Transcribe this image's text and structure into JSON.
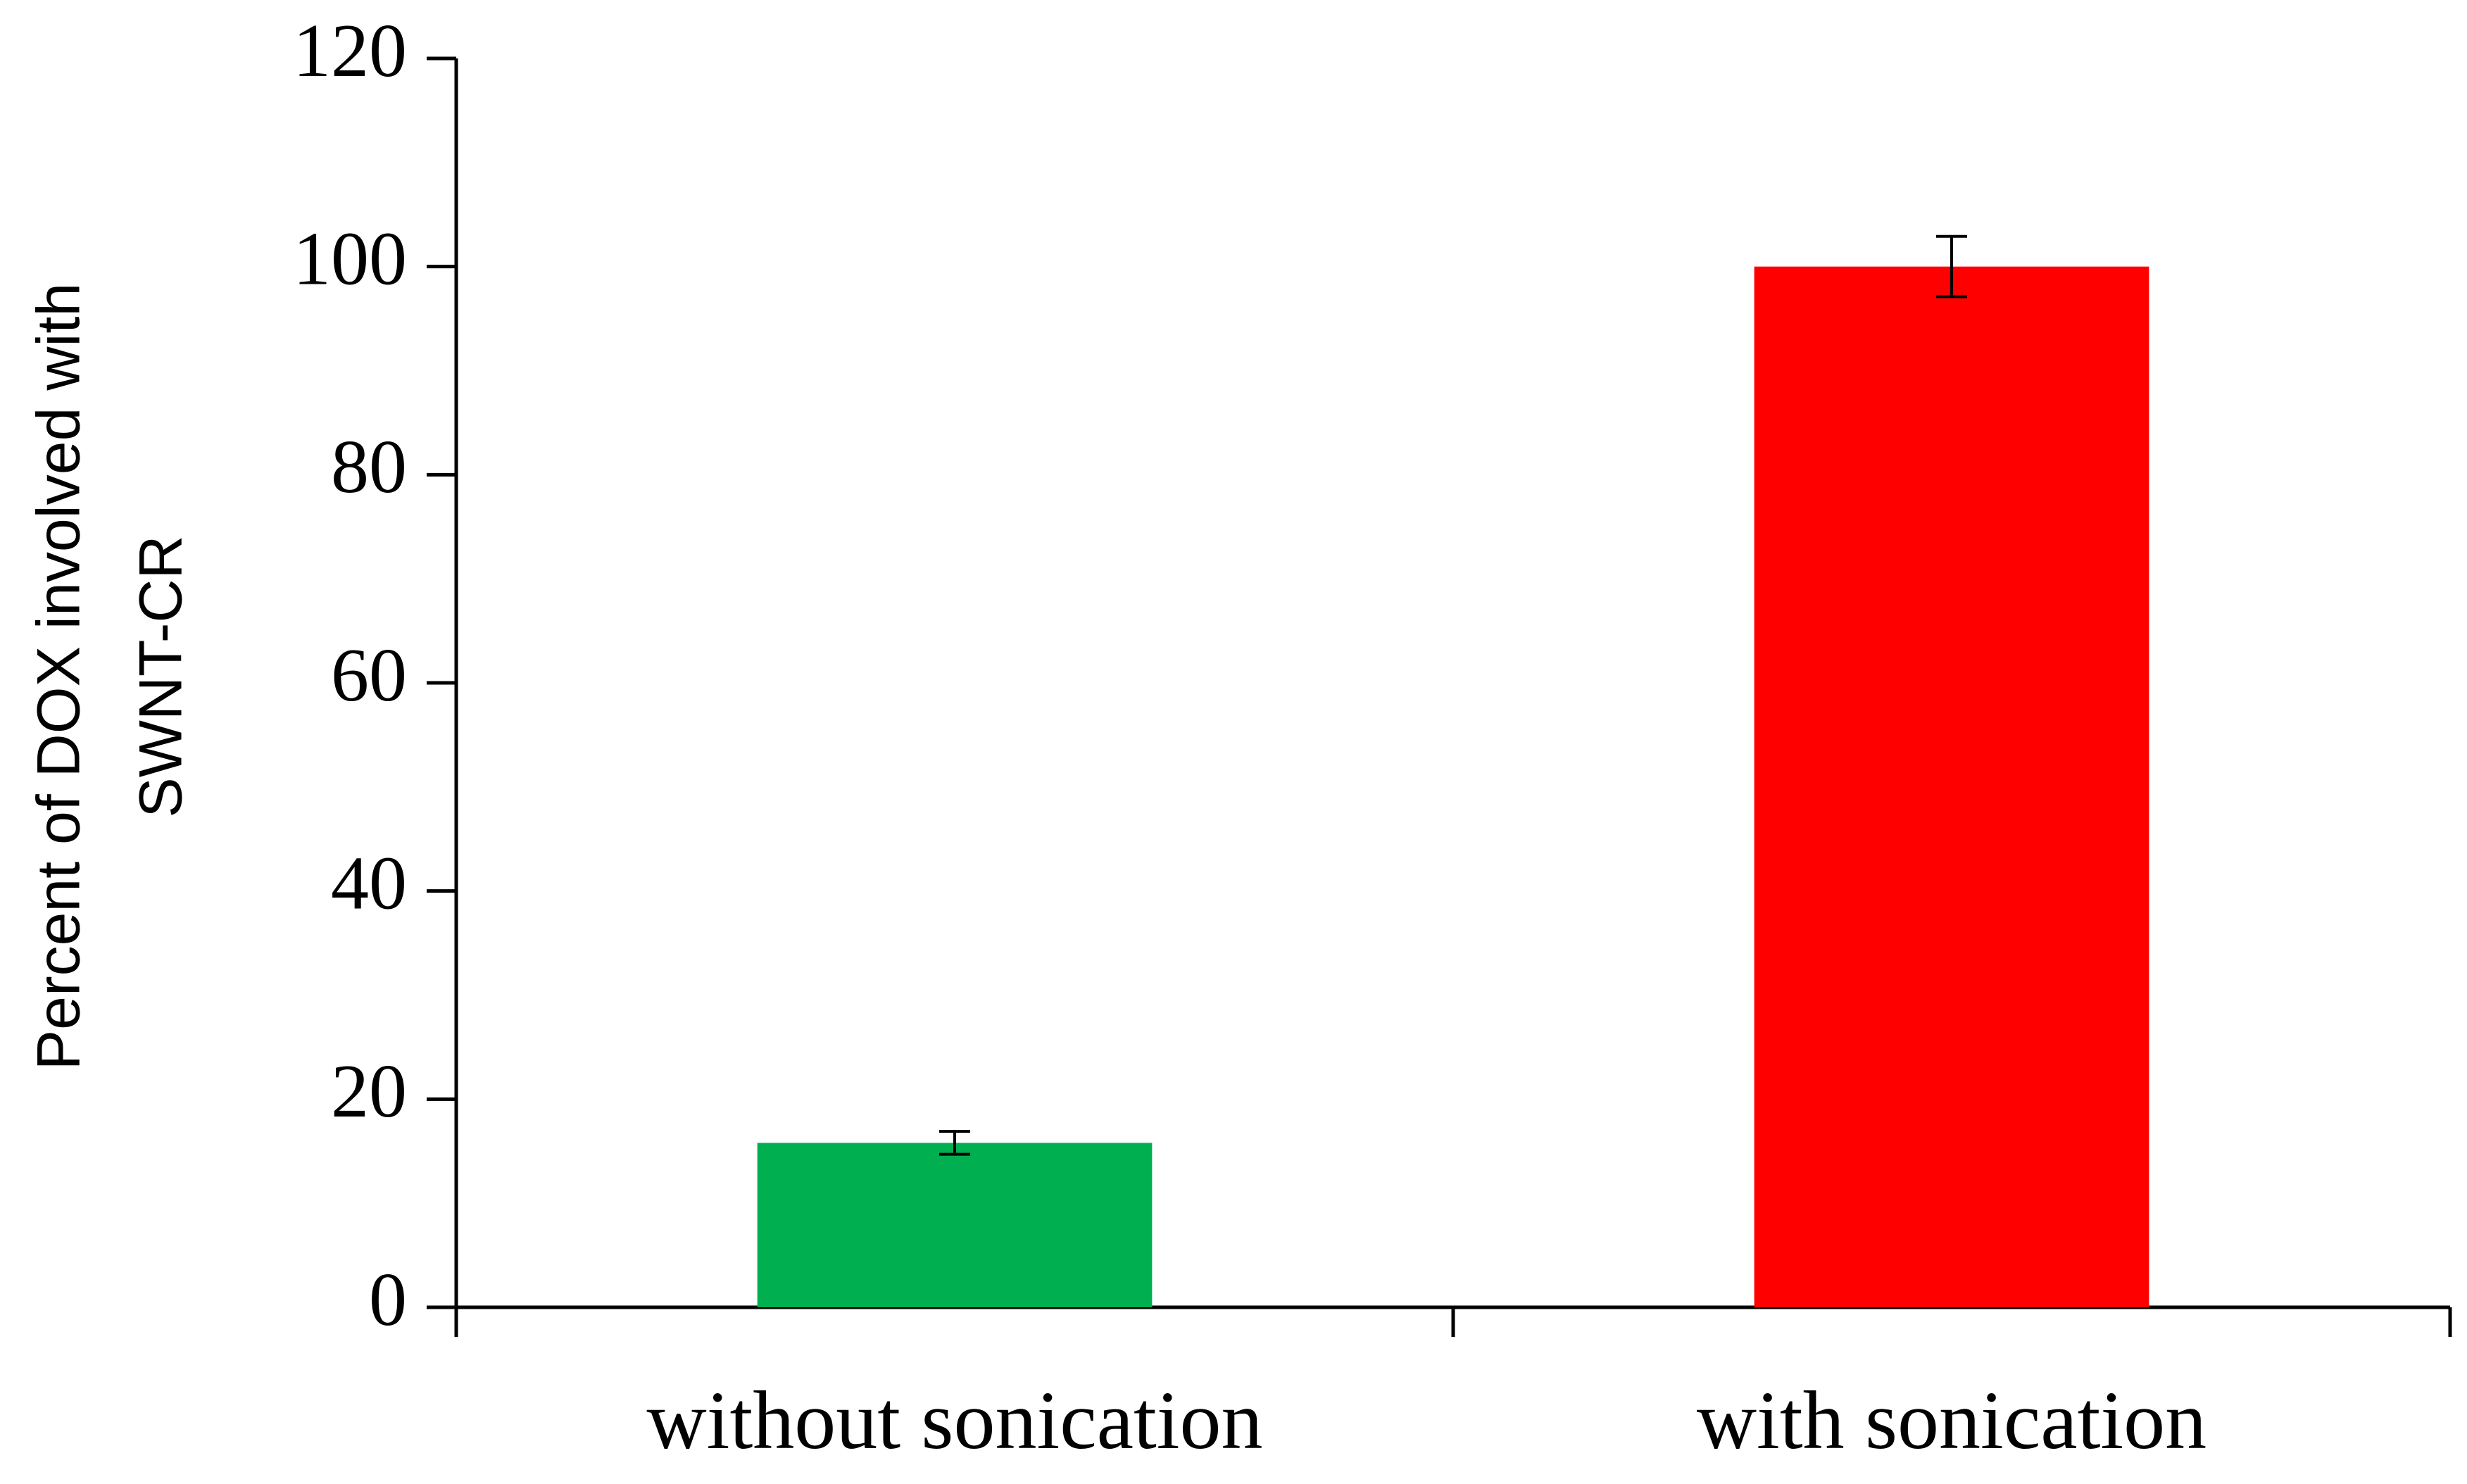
{
  "chart_data": {
    "type": "bar",
    "ylabel": [
      "Percent of DOX involved with",
      "SWNT-CR"
    ],
    "categories": [
      "without sonication",
      "with sonication"
    ],
    "values": [
      15.8,
      100
    ],
    "errors": [
      1.1,
      2.9
    ],
    "colors": [
      "#00b050",
      "#ff0000"
    ],
    "ylim": [
      0,
      120
    ],
    "yticks": [
      0,
      20,
      40,
      60,
      80,
      100,
      120
    ],
    "grid": false
  }
}
